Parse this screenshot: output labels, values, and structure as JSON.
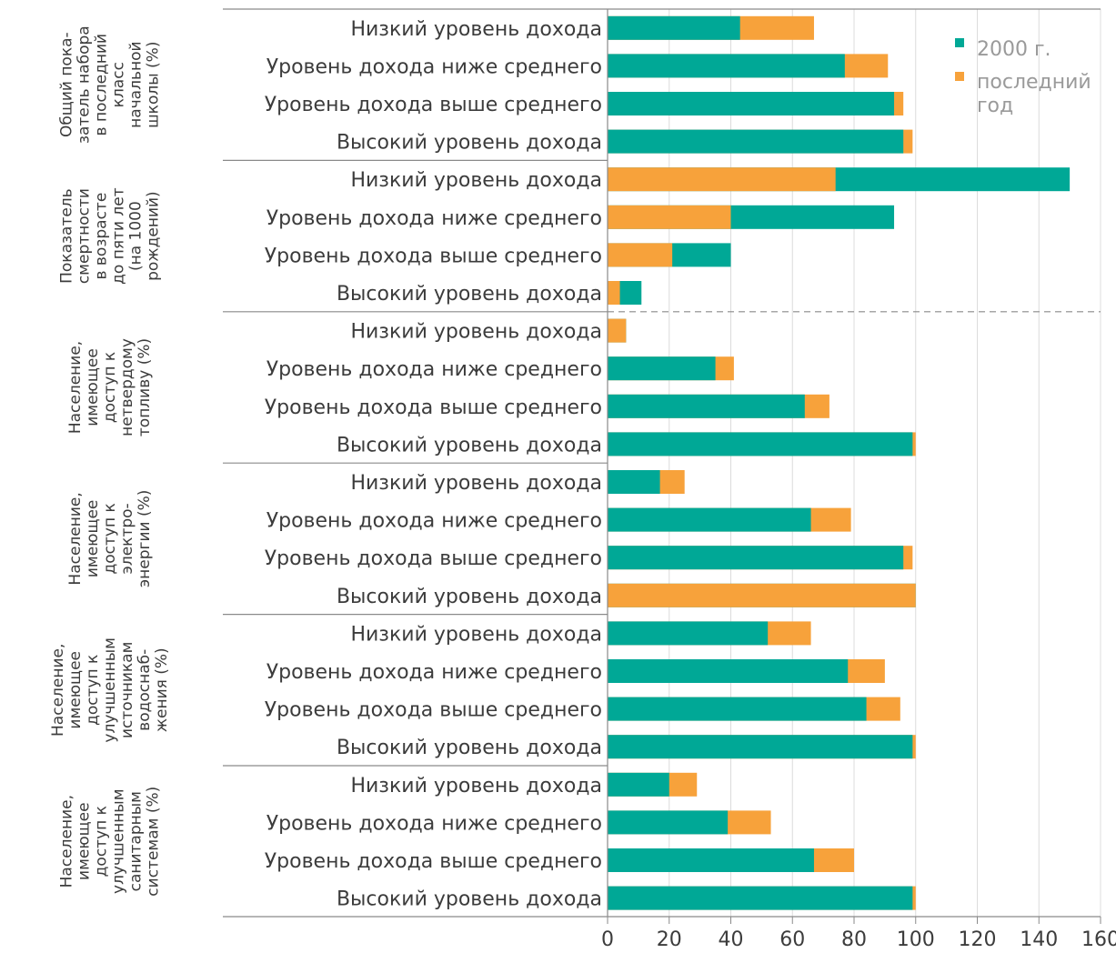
{
  "chart_data": {
    "type": "bar",
    "orientation": "horizontal",
    "stacking": "overlay",
    "xlim": [
      0,
      160
    ],
    "x_ticks": [
      0,
      20,
      40,
      60,
      80,
      100,
      120,
      140,
      160
    ],
    "grid": true,
    "legend_position": "top-right",
    "legend": [
      {
        "label": "2000 г.",
        "color": "#00a896"
      },
      {
        "label": "последний год",
        "color": "#f7a23b"
      }
    ],
    "series": [
      {
        "name": "2000 г.",
        "color": "#00a896"
      },
      {
        "name": "последний год",
        "color": "#f7a23b"
      }
    ],
    "groups": [
      {
        "label": [
          "Общий пока-",
          "затель набора",
          "в последний",
          "класс",
          "начальной",
          "школы (%)"
        ],
        "rows": [
          {
            "category": "Низкий уровень дохода",
            "y2000": 43,
            "latest": 67
          },
          {
            "category": "Уровень дохода ниже среднего",
            "y2000": 77,
            "latest": 91
          },
          {
            "category": "Уровень дохода выше среднего",
            "y2000": 93,
            "latest": 96
          },
          {
            "category": "Высокий уровень дохода",
            "y2000": 96,
            "latest": 99
          }
        ]
      },
      {
        "label": [
          "Показатель",
          "смертности",
          "в возрасте",
          "до пяти лет",
          "(на 1000",
          "рождений)"
        ],
        "rows": [
          {
            "category": "Низкий уровень дохода",
            "y2000": 150,
            "latest": 74
          },
          {
            "category": "Уровень дохода ниже среднего",
            "y2000": 93,
            "latest": 40
          },
          {
            "category": "Уровень дохода выше среднего",
            "y2000": 40,
            "latest": 21
          },
          {
            "category": "Высокий уровень дохода",
            "y2000": 11,
            "latest": 4
          }
        ]
      },
      {
        "label": [
          "Население,",
          "имеющее",
          "доступ к",
          "нетвердому",
          "топливу (%)"
        ],
        "rows": [
          {
            "category": "Низкий уровень дохода",
            "y2000": 6,
            "latest": 6
          },
          {
            "category": "Уровень дохода ниже среднего",
            "y2000": 35,
            "latest": 41
          },
          {
            "category": "Уровень дохода выше среднего",
            "y2000": 64,
            "latest": 72
          },
          {
            "category": "Высокий уровень дохода",
            "y2000": 99,
            "latest": 100
          }
        ]
      },
      {
        "label": [
          "Население,",
          "имеющее",
          "доступ к",
          "электро-",
          "энергии (%)"
        ],
        "rows": [
          {
            "category": "Низкий уровень дохода",
            "y2000": 17,
            "latest": 25
          },
          {
            "category": "Уровень дохода ниже среднего",
            "y2000": 66,
            "latest": 79
          },
          {
            "category": "Уровень дохода выше среднего",
            "y2000": 96,
            "latest": 99
          },
          {
            "category": "Высокий уровень дохода",
            "y2000": 100,
            "latest": 100
          }
        ]
      },
      {
        "label": [
          "Население,",
          "имеющее",
          "доступ к",
          "улучшенным",
          "источникам",
          "водоснаб-",
          "жения (%)"
        ],
        "rows": [
          {
            "category": "Низкий уровень дохода",
            "y2000": 52,
            "latest": 66
          },
          {
            "category": "Уровень дохода ниже среднего",
            "y2000": 78,
            "latest": 90
          },
          {
            "category": "Уровень дохода выше среднего",
            "y2000": 84,
            "latest": 95
          },
          {
            "category": "Высокий уровень дохода",
            "y2000": 99,
            "latest": 100
          }
        ]
      },
      {
        "label": [
          "Население,",
          "имеющее",
          "доступ к",
          "улучшенным",
          "санитарным",
          "системам (%)"
        ],
        "rows": [
          {
            "category": "Низкий уровень дохода",
            "y2000": 20,
            "latest": 29
          },
          {
            "category": "Уровень дохода ниже среднего",
            "y2000": 39,
            "latest": 53
          },
          {
            "category": "Уровень дохода выше среднего",
            "y2000": 67,
            "latest": 80
          },
          {
            "category": "Высокий уровень дохода",
            "y2000": 99,
            "latest": 100
          }
        ]
      }
    ]
  }
}
